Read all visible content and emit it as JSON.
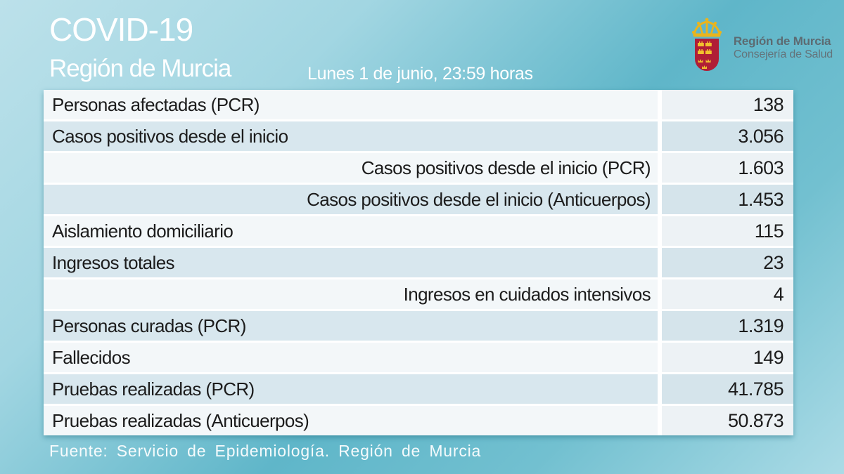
{
  "header": {
    "title": "COVID-19",
    "subtitle": "Región de Murcia",
    "datetime": "Lunes 1 de junio, 23:59 horas"
  },
  "logo": {
    "org_name": "Región de Murcia",
    "org_dept": "Consejería de Salud"
  },
  "table": {
    "rows": [
      {
        "label": "Personas afectadas (PCR)",
        "value": "138",
        "indent": false
      },
      {
        "label": "Casos positivos desde el inicio",
        "value": "3.056",
        "indent": false
      },
      {
        "label": "Casos positivos desde el inicio (PCR)",
        "value": "1.603",
        "indent": true
      },
      {
        "label": "Casos positivos desde el inicio (Anticuerpos)",
        "value": "1.453",
        "indent": true
      },
      {
        "label": "Aislamiento domiciliario",
        "value": "115",
        "indent": false
      },
      {
        "label": "Ingresos totales",
        "value": "23",
        "indent": false
      },
      {
        "label": "Ingresos en cuidados intensivos",
        "value": "4",
        "indent": true
      },
      {
        "label": "Personas curadas (PCR)",
        "value": "1.319",
        "indent": false
      },
      {
        "label": "Fallecidos",
        "value": "149",
        "indent": false
      },
      {
        "label": "Pruebas realizadas (PCR)",
        "value": "41.785",
        "indent": false
      },
      {
        "label": "Pruebas realizadas (Anticuerpos)",
        "value": "50.873",
        "indent": false
      }
    ]
  },
  "footer": {
    "source": "Fuente: Servicio de Epidemiología. Región de Murcia"
  },
  "chart_data": {
    "type": "table",
    "title": "COVID-19 Región de Murcia",
    "datetime": "Lunes 1 de junio, 23:59 horas",
    "categories": [
      "Personas afectadas (PCR)",
      "Casos positivos desde el inicio",
      "Casos positivos desde el inicio (PCR)",
      "Casos positivos desde el inicio (Anticuerpos)",
      "Aislamiento domiciliario",
      "Ingresos totales",
      "Ingresos en cuidados intensivos",
      "Personas curadas (PCR)",
      "Fallecidos",
      "Pruebas realizadas (PCR)",
      "Pruebas realizadas (Anticuerpos)"
    ],
    "values": [
      138,
      3056,
      1603,
      1453,
      115,
      23,
      4,
      1319,
      149,
      41785,
      50873
    ],
    "source": "Fuente: Servicio de Epidemiología. Región de Murcia",
    "layout": {
      "banded_rows": true,
      "value_column": "right-aligned"
    }
  },
  "colors": {
    "background_light": "#bce1ea",
    "background_teal": "#5fb6c9",
    "row_light": "#f3f7f9",
    "row_blue": "#d8e7ee",
    "table_text": "#1c1c1c",
    "header_text": "#ffffff",
    "shield_red": "#b01e36",
    "crown_gold": "#eab41c",
    "logo_text": "#5c6b72"
  }
}
